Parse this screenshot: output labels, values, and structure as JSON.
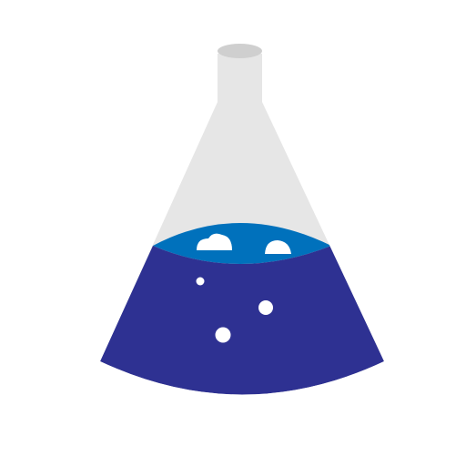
{
  "icon": {
    "name": "erlenmeyer-flask-icon",
    "colors": {
      "background": "#ffffff",
      "glass": "#e6e6e6",
      "glass_rim": "#cfcfcf",
      "liquid": "#2e3192",
      "liquid_surface": "#0071bc",
      "bubble": "#ffffff"
    }
  }
}
